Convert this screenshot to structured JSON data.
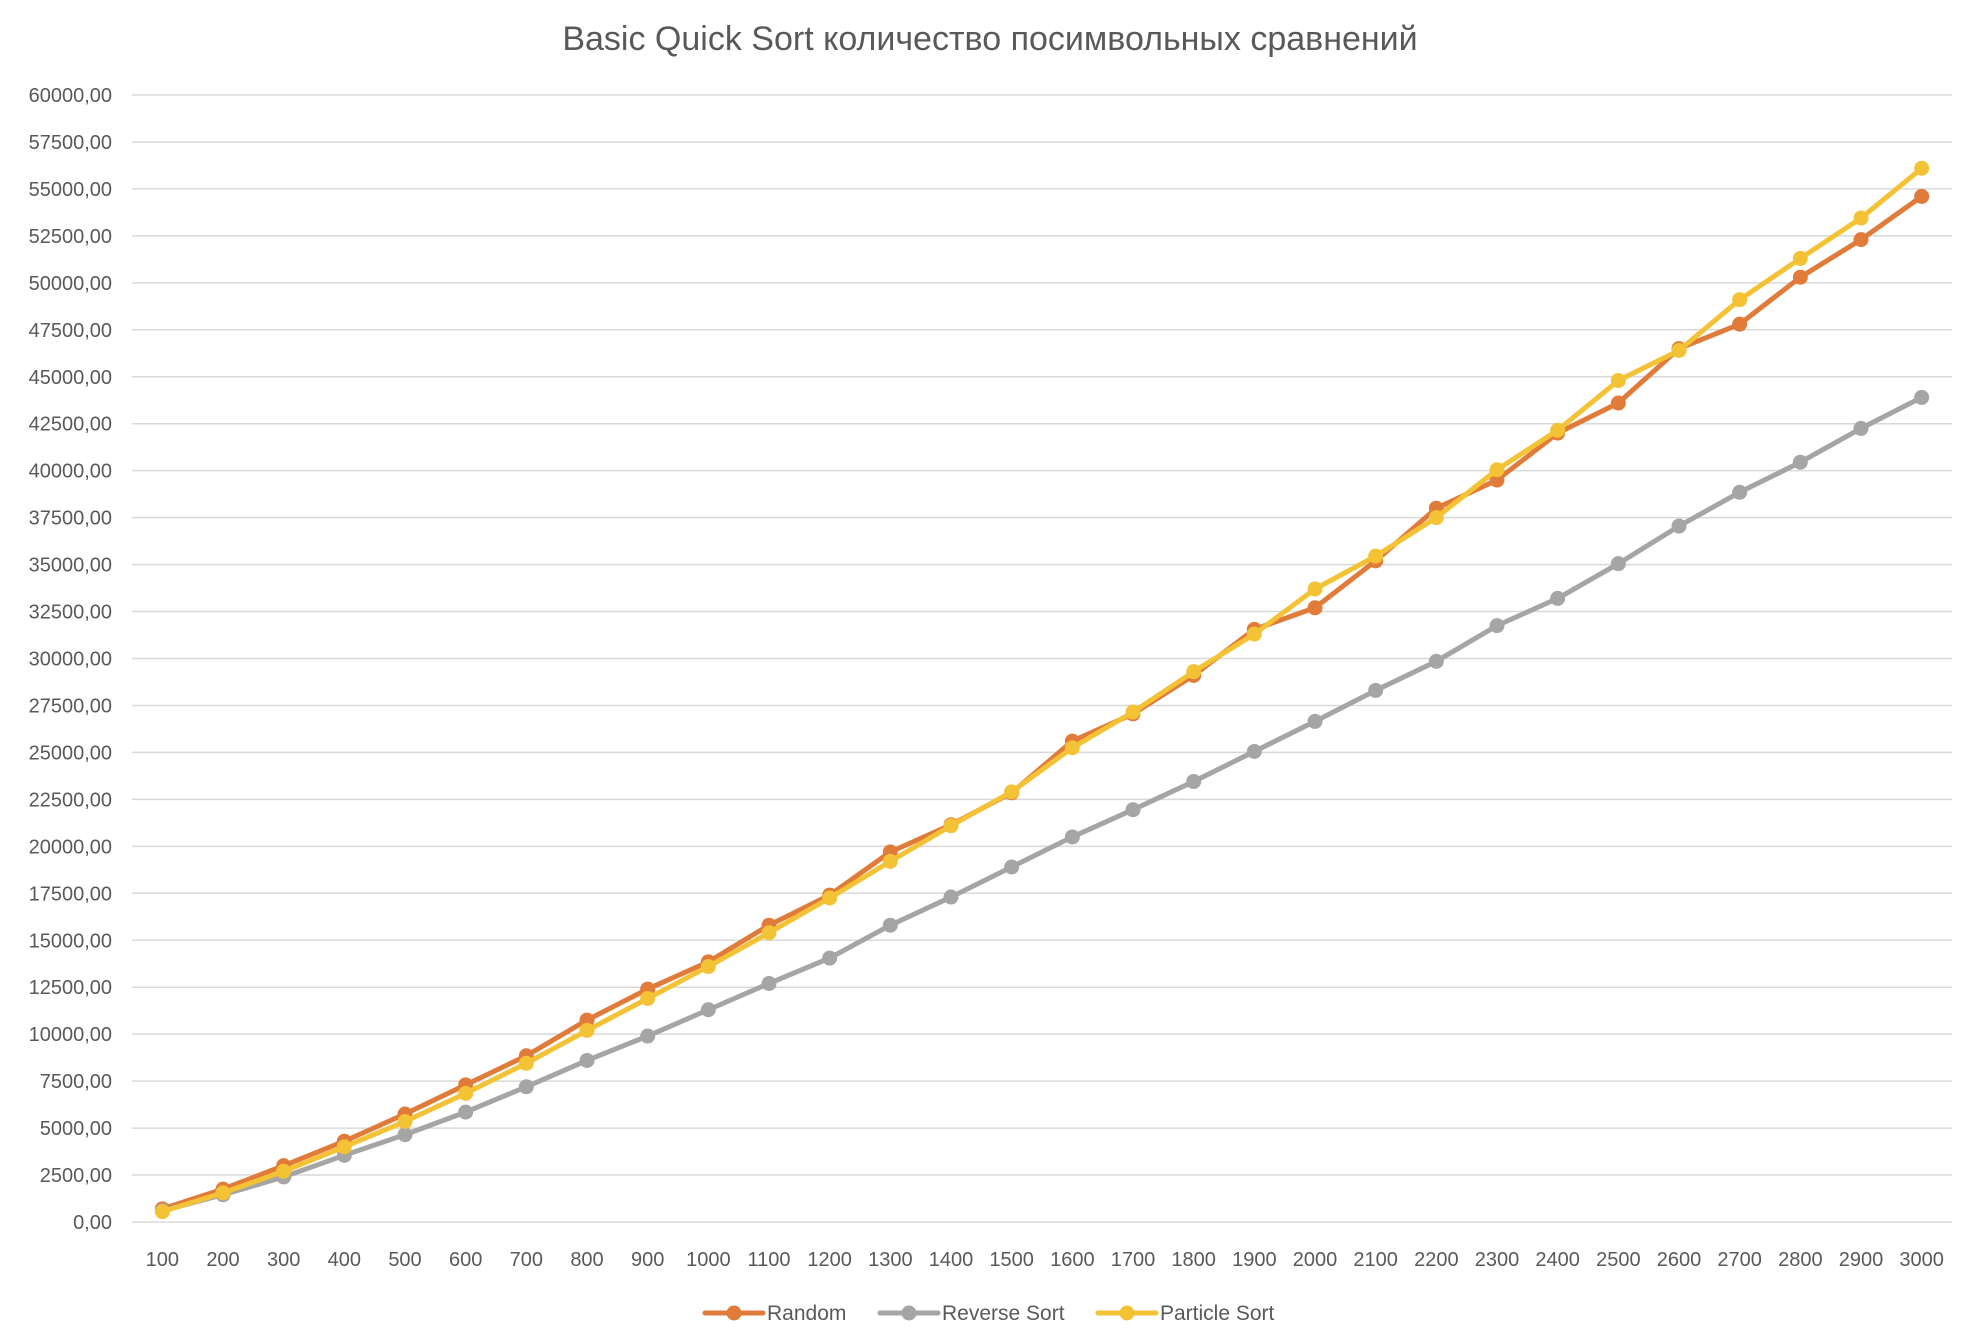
{
  "chart_data": {
    "type": "line",
    "title": "Basic Quick Sort количество посимвольных сравнений",
    "xlabel": "",
    "ylabel": "",
    "categories": [
      "100",
      "200",
      "300",
      "400",
      "500",
      "600",
      "700",
      "800",
      "900",
      "1000",
      "1100",
      "1200",
      "1300",
      "1400",
      "1500",
      "1600",
      "1700",
      "1800",
      "1900",
      "2000",
      "2100",
      "2200",
      "2300",
      "2400",
      "2500",
      "2600",
      "2700",
      "2800",
      "2900",
      "3000"
    ],
    "ylim": [
      0,
      60000
    ],
    "y_ticks": [
      "0,00",
      "2500,00",
      "5000,00",
      "7500,00",
      "10000,00",
      "12500,00",
      "15000,00",
      "17500,00",
      "20000,00",
      "22500,00",
      "25000,00",
      "27500,00",
      "30000,00",
      "32500,00",
      "35000,00",
      "37500,00",
      "40000,00",
      "42500,00",
      "45000,00",
      "47500,00",
      "50000,00",
      "52500,00",
      "55000,00",
      "57500,00",
      "60000,00"
    ],
    "y_tick_values": [
      0,
      2500,
      5000,
      7500,
      10000,
      12500,
      15000,
      17500,
      20000,
      22500,
      25000,
      27500,
      30000,
      32500,
      35000,
      37500,
      40000,
      42500,
      45000,
      47500,
      50000,
      52500,
      55000,
      57500,
      60000
    ],
    "grid": true,
    "legend_position": "bottom",
    "series": [
      {
        "name": "Random",
        "color": "#E07B39",
        "values": [
          700,
          1750,
          3000,
          4300,
          5750,
          7300,
          8850,
          10750,
          12400,
          13850,
          15800,
          17400,
          19700,
          21150,
          22850,
          25600,
          27050,
          29100,
          31550,
          32700,
          35200,
          38000,
          39500,
          42000,
          43600,
          46500,
          47800,
          50300,
          52300,
          54600
        ]
      },
      {
        "name": "Reverse Sort",
        "color": "#A5A5A5",
        "values": [
          600,
          1450,
          2400,
          3550,
          4650,
          5850,
          7200,
          8600,
          9900,
          11300,
          12700,
          14050,
          15800,
          17300,
          18900,
          20500,
          21950,
          23450,
          25050,
          26650,
          28300,
          29850,
          31750,
          33200,
          35050,
          37050,
          38850,
          40450,
          42250,
          43900
        ]
      },
      {
        "name": "Particle Sort",
        "color": "#F4C235",
        "values": [
          550,
          1550,
          2700,
          4000,
          5350,
          6850,
          8450,
          10200,
          11900,
          13600,
          15400,
          17250,
          19200,
          21100,
          22900,
          25250,
          27150,
          29300,
          31300,
          33700,
          35450,
          37500,
          40050,
          42150,
          44800,
          46400,
          49100,
          51300,
          53450,
          56100
        ]
      }
    ]
  }
}
